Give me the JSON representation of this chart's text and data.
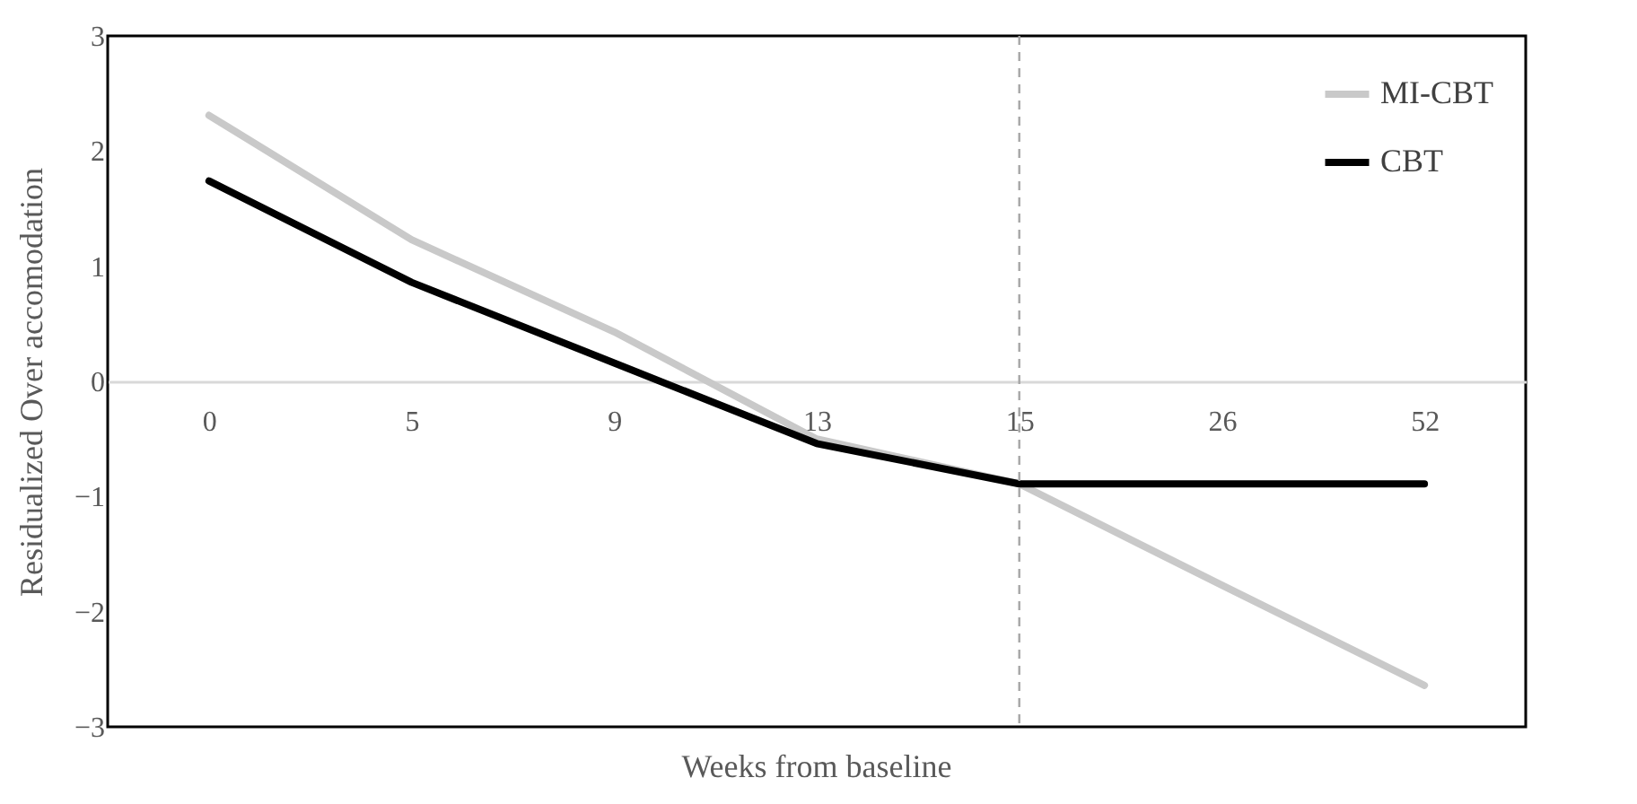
{
  "chart_data": {
    "type": "line",
    "xlabel": "Weeks from baseline",
    "ylabel": "Residualized Over accomodation",
    "categories": [
      "0",
      "5",
      "9",
      "13",
      "15",
      "26",
      "52"
    ],
    "series": [
      {
        "name": "MI-CBT",
        "color": "#c9c9c9",
        "values": [
          2.31,
          1.23,
          0.43,
          -0.5,
          -0.89,
          -1.77,
          -2.64
        ]
      },
      {
        "name": "CBT",
        "color": "#000000",
        "values": [
          1.74,
          0.86,
          0.16,
          -0.54,
          -0.89,
          -0.89,
          -0.89
        ]
      }
    ],
    "ylim": [
      -3,
      3
    ],
    "yticks": [
      -3,
      -2,
      -1,
      0,
      1,
      2,
      3
    ],
    "ref_lines": [
      {
        "axis": "x",
        "value": "15",
        "color": "#a6a6a6",
        "line_style": "dashed"
      }
    ],
    "grid": false,
    "legend": "top right",
    "marker": "none",
    "line_style": "solid"
  }
}
